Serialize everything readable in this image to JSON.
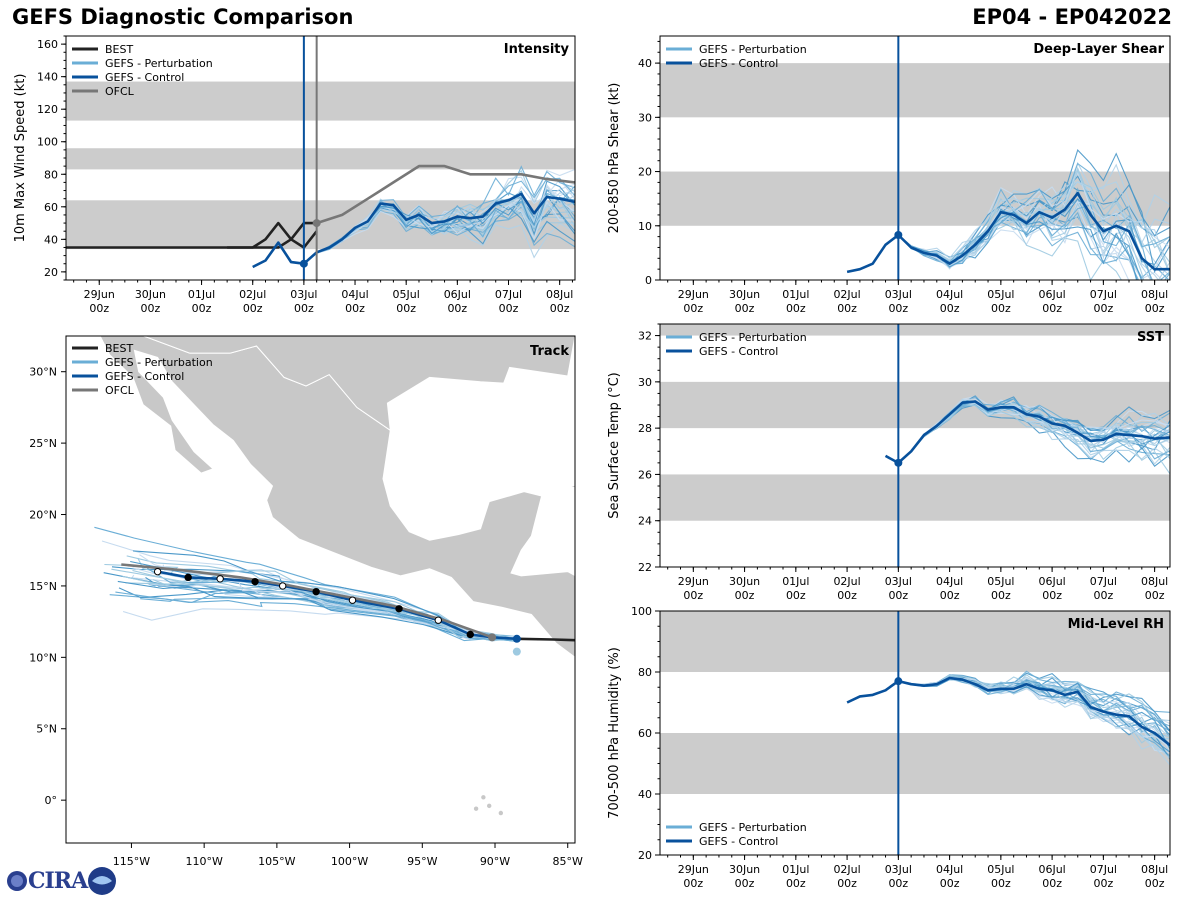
{
  "header": {
    "title_left": "GEFS Diagnostic Comparison",
    "title_right": "EP04 - EP042022"
  },
  "logo": {
    "text": "CIRA"
  },
  "time_axis": {
    "ticks": [
      {
        "day": 0,
        "l1": "29Jun",
        "l2": "00z"
      },
      {
        "day": 1,
        "l1": "30Jun",
        "l2": "00z"
      },
      {
        "day": 2,
        "l1": "01Jul",
        "l2": "00z"
      },
      {
        "day": 3,
        "l1": "02Jul",
        "l2": "00z"
      },
      {
        "day": 4,
        "l1": "03Jul",
        "l2": "00z"
      },
      {
        "day": 5,
        "l1": "04Jul",
        "l2": "00z"
      },
      {
        "day": 6,
        "l1": "05Jul",
        "l2": "00z"
      },
      {
        "day": 7,
        "l1": "06Jul",
        "l2": "00z"
      },
      {
        "day": 8,
        "l1": "07Jul",
        "l2": "00z"
      },
      {
        "day": 9,
        "l1": "08Jul",
        "l2": "00z"
      }
    ],
    "xlim_days": [
      -0.65,
      9.3
    ],
    "init_day": 4.0,
    "ofcl_init_day": 4.25
  },
  "colors": {
    "best": "#222222",
    "perturbation": "#6aaed6",
    "control": "#08519c",
    "ofcl": "#777777",
    "band": "#cccccc",
    "land": "#c8c8c8"
  },
  "chart_data": [
    {
      "id": "intensity",
      "type": "line",
      "title": "Intensity",
      "ylabel": "10m Max Wind Speed (kt)",
      "ylim": [
        15,
        165
      ],
      "yticks": [
        20,
        40,
        60,
        80,
        100,
        120,
        140,
        160
      ],
      "bands": [
        [
          34,
          64
        ],
        [
          83,
          96
        ],
        [
          113,
          137
        ]
      ],
      "legend": [
        "BEST",
        "GEFS - Perturbation",
        "GEFS - Control",
        "OFCL"
      ],
      "series": [
        {
          "name": "BEST",
          "x": [
            -0.75,
            3.5,
            3.75,
            4.0,
            4.25
          ],
          "y": [
            35,
            35,
            40,
            50,
            50
          ]
        },
        {
          "name": "BEST",
          "x": [
            2.5,
            3.0,
            3.25,
            3.5,
            3.75,
            4.0,
            4.25
          ],
          "y": [
            35,
            35,
            40,
            50,
            40,
            35,
            45
          ]
        },
        {
          "name": "GEFS - Control",
          "x": [
            3.0,
            3.25,
            3.5,
            3.75,
            4.0,
            4.25,
            4.5,
            4.75,
            5.0,
            5.25,
            5.5,
            5.75,
            6.0,
            6.25,
            6.5,
            6.75,
            7.0,
            7.25,
            7.5,
            7.75,
            8.0,
            8.25,
            8.5,
            8.75,
            9.0,
            9.3
          ],
          "y": [
            23,
            27,
            38,
            26,
            25,
            32,
            35,
            40,
            47,
            51,
            62,
            61,
            52,
            55,
            50,
            51,
            54,
            53,
            54,
            62,
            64,
            68,
            56,
            66,
            65,
            63
          ]
        },
        {
          "name": "OFCL",
          "x": [
            4.25,
            4.75,
            5.25,
            5.75,
            6.25,
            6.75,
            7.25,
            7.75,
            8.25,
            8.75,
            9.3
          ],
          "y": [
            50,
            55,
            65,
            75,
            85,
            85,
            80,
            80,
            80,
            77,
            75
          ]
        }
      ]
    },
    {
      "id": "shear",
      "type": "line",
      "title": "Deep-Layer Shear",
      "ylabel": "200-850 hPa Shear (kt)",
      "ylim": [
        0,
        45
      ],
      "yticks": [
        0,
        10,
        20,
        30,
        40
      ],
      "bands": [
        [
          10,
          20
        ],
        [
          30,
          40
        ]
      ],
      "legend": [
        "GEFS - Perturbation",
        "GEFS - Control"
      ],
      "series": [
        {
          "name": "GEFS - Control",
          "x": [
            3.0,
            3.25,
            3.5,
            3.75,
            4.0,
            4.25,
            4.5,
            4.75,
            5.0,
            5.25,
            5.5,
            5.75,
            6.0,
            6.25,
            6.5,
            6.75,
            7.0,
            7.25,
            7.5,
            7.75,
            8.0,
            8.25,
            8.5,
            8.75,
            9.0,
            9.3
          ],
          "y": [
            1.5,
            2,
            3,
            6.5,
            8.3,
            6,
            5,
            4.5,
            3,
            4.5,
            6.5,
            9,
            12.5,
            12,
            10.5,
            12.5,
            11.5,
            13,
            16,
            12,
            9,
            10,
            9,
            4,
            2,
            2
          ]
        }
      ]
    },
    {
      "id": "sst",
      "type": "line",
      "title": "SST",
      "ylabel": "Sea Surface Temp (°C)",
      "ylim": [
        22,
        32.5
      ],
      "yticks": [
        22,
        24,
        26,
        28,
        30,
        32
      ],
      "bands": [
        [
          24,
          26
        ],
        [
          28,
          30
        ],
        [
          32,
          34
        ]
      ],
      "legend": [
        "GEFS - Perturbation",
        "GEFS - Control"
      ],
      "series": [
        {
          "name": "GEFS - Control",
          "x": [
            3.75,
            4.0,
            4.25,
            4.5,
            4.75,
            5.0,
            5.25,
            5.5,
            5.75,
            6.0,
            6.25,
            6.5,
            6.75,
            7.0,
            7.25,
            7.5,
            7.75,
            8.0,
            8.25,
            8.5,
            8.75,
            9.0,
            9.3
          ],
          "y": [
            26.8,
            26.5,
            27.0,
            27.7,
            28.1,
            28.6,
            29.1,
            29.15,
            28.8,
            28.9,
            28.9,
            28.6,
            28.5,
            28.2,
            28.1,
            27.8,
            27.45,
            27.5,
            27.75,
            27.7,
            27.65,
            27.55,
            27.6
          ]
        }
      ]
    },
    {
      "id": "rh",
      "type": "line",
      "title": "Mid-Level RH",
      "ylabel": "700-500 hPa Humidity (%)",
      "ylim": [
        20,
        100
      ],
      "yticks": [
        20,
        40,
        60,
        80,
        100
      ],
      "bands": [
        [
          40,
          60
        ],
        [
          80,
          100
        ]
      ],
      "legend": [
        "GEFS - Perturbation",
        "GEFS - Control"
      ],
      "series": [
        {
          "name": "GEFS - Control",
          "x": [
            3.0,
            3.25,
            3.5,
            3.75,
            4.0,
            4.25,
            4.5,
            4.75,
            5.0,
            5.25,
            5.5,
            5.75,
            6.0,
            6.25,
            6.5,
            6.75,
            7.0,
            7.25,
            7.5,
            7.75,
            8.0,
            8.25,
            8.5,
            8.75,
            9.0,
            9.3
          ],
          "y": [
            70,
            72,
            72.5,
            74,
            77,
            76,
            75.5,
            76,
            78,
            77.5,
            76,
            74,
            74.5,
            74.5,
            76,
            74.5,
            74,
            72.5,
            73.5,
            68.5,
            67,
            66,
            65.5,
            62,
            60,
            56
          ]
        }
      ]
    },
    {
      "id": "track",
      "type": "line",
      "title": "Track",
      "xlim": [
        -119.5,
        -84.5
      ],
      "ylim": [
        -3,
        32.5
      ],
      "xticks": [
        {
          "v": -115,
          "l": "115°W"
        },
        {
          "v": -110,
          "l": "110°W"
        },
        {
          "v": -105,
          "l": "105°W"
        },
        {
          "v": -100,
          "l": "100°W"
        },
        {
          "v": -95,
          "l": "95°W"
        },
        {
          "v": -90,
          "l": "90°W"
        },
        {
          "v": -85,
          "l": "85°W"
        }
      ],
      "yticks": [
        {
          "v": 0,
          "l": "0°"
        },
        {
          "v": 5,
          "l": "5°N"
        },
        {
          "v": 10,
          "l": "10°N"
        },
        {
          "v": 15,
          "l": "15°N"
        },
        {
          "v": 20,
          "l": "20°N"
        },
        {
          "v": 25,
          "l": "25°N"
        },
        {
          "v": 30,
          "l": "30°N"
        }
      ],
      "legend": [
        "BEST",
        "GEFS - Perturbation",
        "GEFS - Control",
        "OFCL"
      ],
      "series": [
        {
          "name": "BEST",
          "lon": [
            -84.5,
            -86,
            -88.5
          ],
          "lat": [
            11.2,
            11.25,
            11.3
          ]
        },
        {
          "name": "GEFS - Control",
          "lon": [
            -88.5,
            -90.2,
            -91.7,
            -93.9,
            -96.6,
            -99.8,
            -102.3,
            -104.6,
            -106.5,
            -108.9,
            -111.1,
            -113.2
          ],
          "lat": [
            11.3,
            11.4,
            11.6,
            12.6,
            13.4,
            14.0,
            14.6,
            15.0,
            15.3,
            15.5,
            15.6,
            16.0
          ]
        },
        {
          "name": "OFCL",
          "lon": [
            -90.2,
            -93.5,
            -97.0,
            -100.5,
            -104.0,
            -107.5,
            -111.5,
            -115.7
          ],
          "lat": [
            11.4,
            12.6,
            13.6,
            14.3,
            15.0,
            15.6,
            16.1,
            16.5
          ]
        }
      ]
    }
  ]
}
